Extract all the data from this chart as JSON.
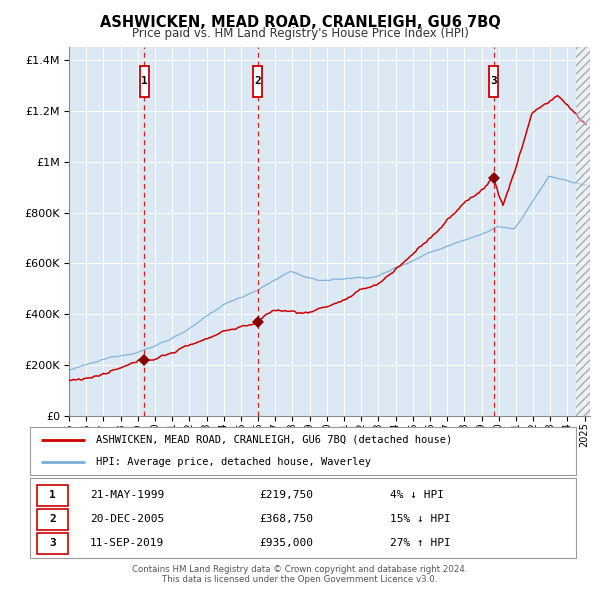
{
  "title": "ASHWICKEN, MEAD ROAD, CRANLEIGH, GU6 7BQ",
  "subtitle": "Price paid vs. HM Land Registry's House Price Index (HPI)",
  "xlim": [
    1995.0,
    2025.3
  ],
  "ylim": [
    0,
    1450000
  ],
  "yticks": [
    0,
    200000,
    400000,
    600000,
    800000,
    1000000,
    1200000,
    1400000
  ],
  "xticks": [
    1995,
    1996,
    1997,
    1998,
    1999,
    2000,
    2001,
    2002,
    2003,
    2004,
    2005,
    2006,
    2007,
    2008,
    2009,
    2010,
    2011,
    2012,
    2013,
    2014,
    2015,
    2016,
    2017,
    2018,
    2019,
    2020,
    2021,
    2022,
    2023,
    2024,
    2025
  ],
  "bg_color": "#dce9f5",
  "fig_bg_color": "#ffffff",
  "grid_color": "#b8cfe8",
  "red_line_color": "#cc0000",
  "blue_line_color": "#7aadd4",
  "marker_color": "#880000",
  "vline_color": "#cc0000",
  "sale_points": [
    {
      "year": 1999.38,
      "value": 219750,
      "label": "1",
      "date": "21-MAY-1999",
      "price": "£219,750",
      "pct": "4%",
      "dir": "↓"
    },
    {
      "year": 2005.97,
      "value": 368750,
      "label": "2",
      "date": "20-DEC-2005",
      "price": "£368,750",
      "pct": "15%",
      "dir": "↓"
    },
    {
      "year": 2019.7,
      "value": 935000,
      "label": "3",
      "date": "11-SEP-2019",
      "price": "£935,000",
      "pct": "27%",
      "dir": "↑"
    }
  ],
  "legend_entries": [
    {
      "label": "ASHWICKEN, MEAD ROAD, CRANLEIGH, GU6 7BQ (detached house)",
      "color": "#cc0000"
    },
    {
      "label": "HPI: Average price, detached house, Waverley",
      "color": "#7aadd4"
    }
  ],
  "footnote1": "Contains HM Land Registry data © Crown copyright and database right 2024.",
  "footnote2": "This data is licensed under the Open Government Licence v3.0."
}
